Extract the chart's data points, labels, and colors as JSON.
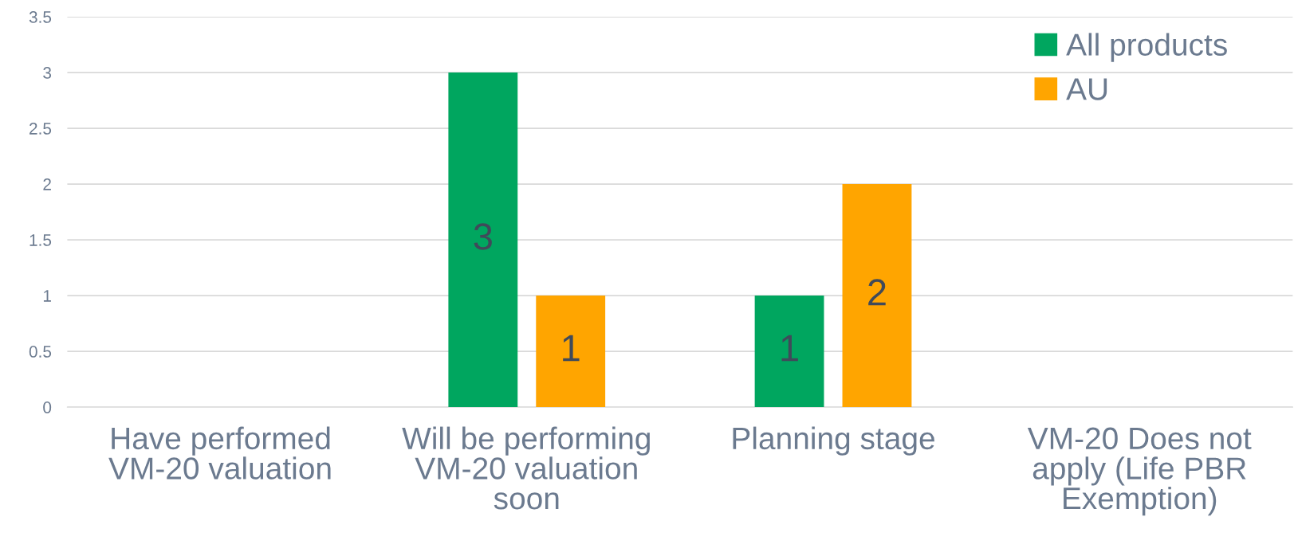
{
  "chart_data": {
    "type": "bar",
    "categories": [
      "Have performed VM-20 valuation",
      "Will be performing VM-20 valuation soon",
      "Planning stage",
      "VM-20 Does not apply (Life PBR Exemption)"
    ],
    "series": [
      {
        "name": "All products",
        "color": "#00a65f",
        "values": [
          null,
          3,
          1,
          null
        ]
      },
      {
        "name": "AU",
        "color": "#ffa500",
        "values": [
          null,
          1,
          2,
          null
        ]
      }
    ],
    "ylim": [
      0,
      3.5
    ],
    "yticks": [
      0,
      0.5,
      1,
      1.5,
      2,
      2.5,
      3,
      3.5
    ],
    "grid": "y",
    "legend": "top right",
    "data_labels": true
  }
}
